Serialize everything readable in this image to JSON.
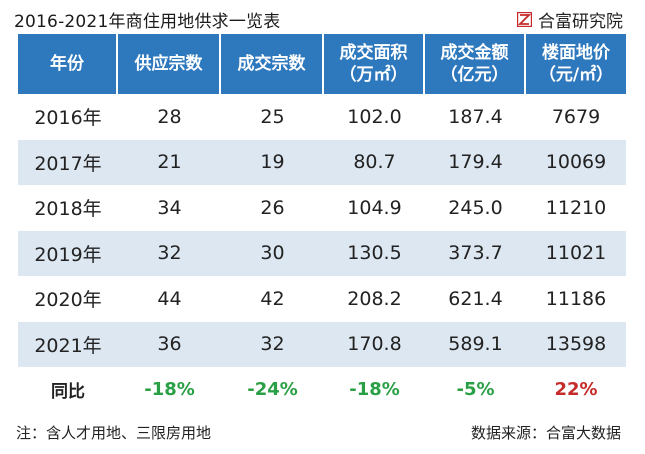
{
  "header": {
    "title": "2016-2021年商住用地供求一览表",
    "brand": "合富研究院"
  },
  "chart_data": {
    "type": "table",
    "columns": [
      [
        "年份"
      ],
      [
        "供应宗数"
      ],
      [
        "成交宗数"
      ],
      [
        "成交面积",
        "（万㎡）"
      ],
      [
        "成交金额",
        "（亿元）"
      ],
      [
        "楼面地价",
        "（元/㎡）"
      ]
    ],
    "rows": [
      [
        "2016年",
        "28",
        "25",
        "102.0",
        "187.4",
        "7679"
      ],
      [
        "2017年",
        "21",
        "19",
        "80.7",
        "179.4",
        "10069"
      ],
      [
        "2018年",
        "34",
        "26",
        "104.9",
        "245.0",
        "11210"
      ],
      [
        "2019年",
        "32",
        "30",
        "130.5",
        "373.7",
        "11021"
      ],
      [
        "2020年",
        "44",
        "42",
        "208.2",
        "621.4",
        "11186"
      ],
      [
        "2021年",
        "36",
        "32",
        "170.8",
        "589.1",
        "13598"
      ]
    ],
    "yoy": {
      "label": "同比",
      "values": [
        "-18%",
        "-24%",
        "-18%",
        "-5%",
        "22%"
      ]
    }
  },
  "footer": {
    "note": "注：含人才用地、三限房用地",
    "source": "数据来源：合富大数据"
  },
  "colors": {
    "header_bg": "#2e78bd",
    "stripe_bg": "#dde7f1",
    "positive": "#c62b2b",
    "negative": "#2aa046"
  }
}
